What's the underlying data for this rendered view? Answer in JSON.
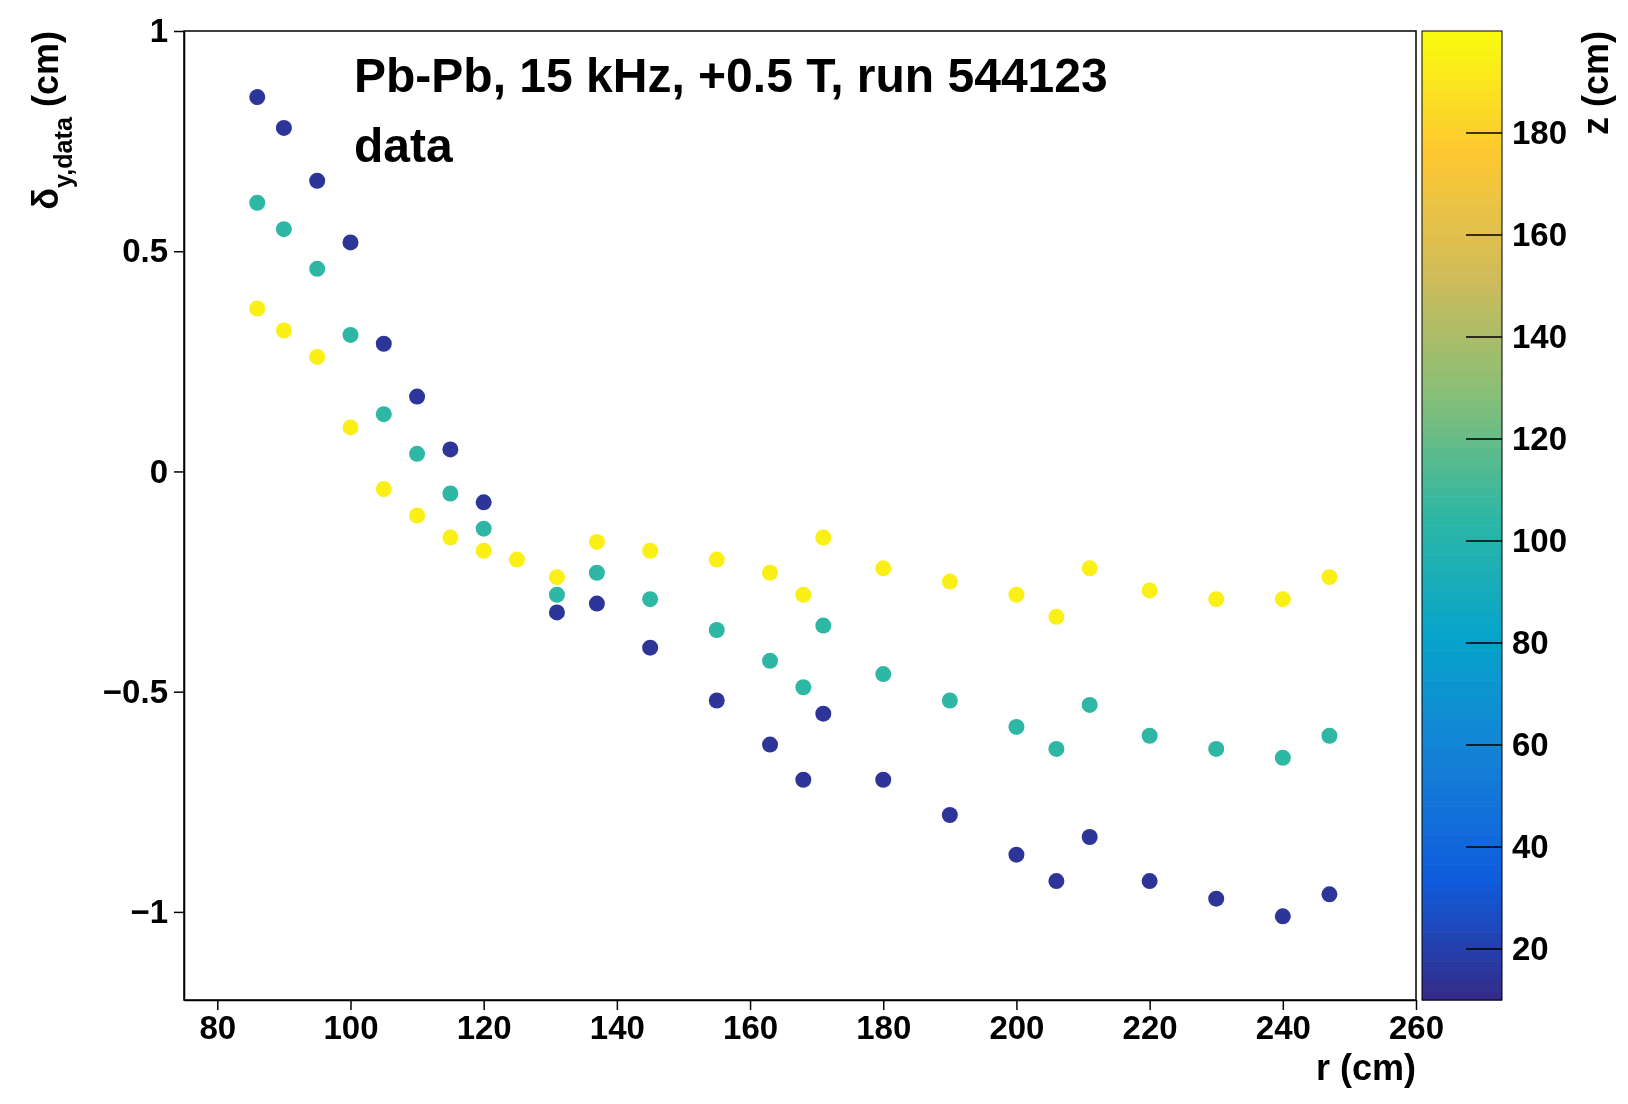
{
  "chart_data": {
    "type": "scatter",
    "xlabel": "r (cm)",
    "ylabel": "δ$_{y,data}$ (cm)",
    "clabel": "z (cm)",
    "annotations": [
      "Pb-Pb, 15 kHz, +0.5 T, run 544123",
      "data"
    ],
    "xlim": [
      75,
      260
    ],
    "xticks": [
      80,
      100,
      120,
      140,
      160,
      180,
      200,
      220,
      240,
      260
    ],
    "ylim": [
      -1.2,
      1
    ],
    "yticks": [
      {
        "value": -1,
        "label": "−1"
      },
      {
        "value": -0.5,
        "label": "−0.5"
      },
      0,
      0.5,
      1
    ],
    "clim": [
      10,
      200
    ],
    "cticks": [
      20,
      40,
      60,
      80,
      100,
      120,
      140,
      160,
      180
    ],
    "grid": false,
    "marker": "circle",
    "series": [
      {
        "x": [
          86,
          90,
          95,
          100,
          105,
          110,
          115,
          120,
          131,
          137,
          145,
          155,
          163,
          168,
          171,
          180,
          190,
          200,
          206,
          211,
          220,
          230,
          240,
          247
        ],
        "values": [
          0.85,
          0.78,
          0.66,
          0.52,
          0.29,
          0.17,
          0.05,
          -0.07,
          -0.32,
          -0.3,
          -0.4,
          -0.52,
          -0.62,
          -0.7,
          -0.55,
          -0.7,
          -0.78,
          -0.87,
          -0.93,
          -0.83,
          -0.93,
          -0.97,
          -1.01,
          -0.96
        ],
        "cvalues": [
          15,
          15,
          15,
          15,
          15,
          15,
          15,
          15,
          15,
          15,
          15,
          15,
          15,
          15,
          15,
          15,
          15,
          15,
          15,
          15,
          15,
          15,
          15,
          15
        ]
      },
      {
        "x": [
          86,
          90,
          95,
          100,
          105,
          110,
          115,
          120,
          131,
          137,
          145,
          155,
          163,
          168,
          171,
          180,
          190,
          200,
          206,
          211,
          220,
          230,
          240,
          247
        ],
        "values": [
          0.61,
          0.55,
          0.46,
          0.31,
          0.13,
          0.04,
          -0.05,
          -0.13,
          -0.28,
          -0.23,
          -0.29,
          -0.36,
          -0.43,
          -0.49,
          -0.35,
          -0.46,
          -0.52,
          -0.58,
          -0.63,
          -0.53,
          -0.6,
          -0.63,
          -0.65,
          -0.6
        ],
        "cvalues": [
          105,
          105,
          105,
          105,
          105,
          105,
          105,
          105,
          105,
          105,
          105,
          105,
          105,
          105,
          105,
          105,
          105,
          105,
          105,
          105,
          105,
          105,
          105,
          105
        ]
      },
      {
        "x": [
          86,
          90,
          95,
          100,
          105,
          110,
          115,
          120,
          125,
          131,
          137,
          145,
          155,
          163,
          168,
          171,
          180,
          190,
          200,
          206,
          211,
          220,
          230,
          240,
          247
        ],
        "values": [
          0.37,
          0.32,
          0.26,
          0.1,
          -0.04,
          -0.1,
          -0.15,
          -0.18,
          -0.2,
          -0.24,
          -0.16,
          -0.18,
          -0.2,
          -0.23,
          -0.28,
          -0.15,
          -0.22,
          -0.25,
          -0.28,
          -0.33,
          -0.22,
          -0.27,
          -0.29,
          -0.29,
          -0.24
        ],
        "cvalues": [
          195,
          195,
          195,
          195,
          195,
          195,
          195,
          195,
          195,
          195,
          195,
          195,
          195,
          195,
          195,
          195,
          195,
          195,
          195,
          195,
          195,
          195,
          195,
          195,
          195
        ]
      }
    ]
  }
}
